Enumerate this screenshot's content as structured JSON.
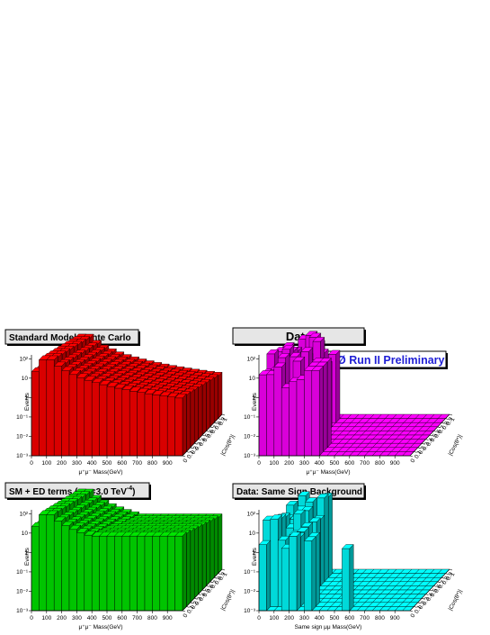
{
  "chart_data": [
    {
      "id": "sm",
      "type": "bar3d",
      "title": "Standard Model Monte Carlo",
      "xlabel": "μ⁺μ⁻ Mass(GeV)",
      "ylabel": "|Cos(θ*)|",
      "zlabel": "Events",
      "x_ticks": [
        "0",
        "100",
        "200",
        "300",
        "400",
        "500",
        "600",
        "700",
        "800",
        "900"
      ],
      "y_ticks": [
        "0",
        "0.1",
        "0.2",
        "0.3",
        "0.4",
        "0.5",
        "0.6",
        "0.7",
        "0.8",
        "0.9",
        "1"
      ],
      "z_ticks": [
        "10²",
        "10",
        "1",
        "10⁻¹",
        "10⁻²",
        "10⁻³"
      ],
      "z_log_range": [
        -3,
        2.2
      ],
      "x_range": [
        0,
        1000
      ],
      "fill_color": "#ff0000",
      "shape": "smooth",
      "peak_log_value": 2.2
    },
    {
      "id": "data",
      "type": "bar3d",
      "title": "Data",
      "xlabel": "μ⁺μ⁻ Mass(GeV)",
      "ylabel": "|Cos(θ*)|",
      "zlabel": "Events",
      "x_ticks": [
        "0",
        "100",
        "200",
        "300",
        "400",
        "500",
        "600",
        "700",
        "800",
        "900"
      ],
      "y_ticks": [
        "0",
        "0.1",
        "0.2",
        "0.3",
        "0.4",
        "0.5",
        "0.6",
        "0.7",
        "0.8",
        "0.9",
        "1"
      ],
      "z_ticks": [
        "10²",
        "10",
        "1",
        "10⁻¹",
        "10⁻²",
        "10⁻³"
      ],
      "z_log_range": [
        -3,
        2.2
      ],
      "x_range": [
        0,
        1000
      ],
      "fill_color": "#ff00ff",
      "shape": "sparse",
      "annotation": "DØ Run II Preliminary"
    },
    {
      "id": "sm_ed",
      "type": "bar3d",
      "title": "SM + ED terms ( η",
      "title_sub": "G",
      "title_rest": "=3.0 TeV",
      "title_sup": "-4",
      "title_end": ")",
      "xlabel": "μ⁺μ⁻ Mass(GeV)",
      "ylabel": "|Cos(θ*)|",
      "zlabel": "Events",
      "x_ticks": [
        "0",
        "100",
        "200",
        "300",
        "400",
        "500",
        "600",
        "700",
        "800",
        "900"
      ],
      "y_ticks": [
        "0",
        "0.1",
        "0.2",
        "0.3",
        "0.4",
        "0.5",
        "0.6",
        "0.7",
        "0.8",
        "0.9",
        "1"
      ],
      "z_ticks": [
        "10²",
        "10",
        "1",
        "10⁻¹",
        "10⁻²",
        "10⁻³"
      ],
      "z_log_range": [
        -3,
        2.2
      ],
      "x_range": [
        0,
        1000
      ],
      "fill_color": "#00e600",
      "shape": "smooth_ed",
      "peak_log_value": 2.2
    },
    {
      "id": "same_sign",
      "type": "bar3d",
      "title": "Data: Same Sign Background",
      "xlabel": "Same sign  μμ  Mass(GeV)",
      "ylabel": "|Cos(θ*)|",
      "zlabel": "Events",
      "x_ticks": [
        "0",
        "100",
        "200",
        "300",
        "400",
        "500",
        "600",
        "700",
        "800",
        "900"
      ],
      "y_ticks": [
        "0",
        "0.1",
        "0.2",
        "0.3",
        "0.4",
        "0.5",
        "0.6",
        "0.7",
        "0.8",
        "0.9",
        "1"
      ],
      "z_ticks": [
        "10²",
        "10",
        "1",
        "10⁻¹",
        "10⁻²",
        "10⁻³"
      ],
      "z_log_range": [
        -3,
        2.2
      ],
      "x_range": [
        0,
        1000
      ],
      "fill_color": "#00ffff",
      "shape": "sparse_ss"
    }
  ]
}
